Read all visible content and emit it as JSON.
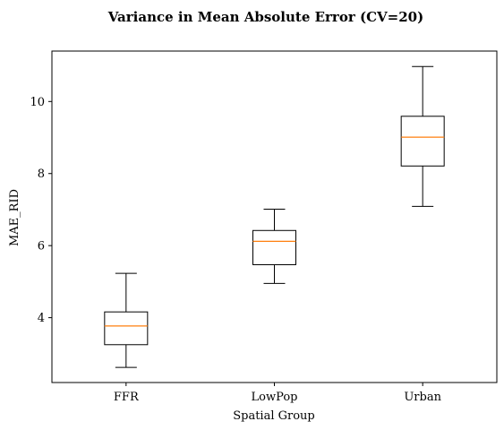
{
  "chart_data": {
    "type": "boxplot",
    "title": "Variance in Mean Absolute Error (CV=20)",
    "xlabel": "Spatial Group",
    "ylabel": "MAE_RID",
    "ylim": [
      2.2,
      11.4
    ],
    "yticks": [
      4,
      6,
      8,
      10
    ],
    "grid": false,
    "categories": [
      "FFR",
      "LowPop",
      "Urban"
    ],
    "boxes": [
      {
        "name": "FFR",
        "whisker_low": 2.62,
        "q1": 3.25,
        "median": 3.77,
        "q3": 4.16,
        "whisker_high": 5.23
      },
      {
        "name": "LowPop",
        "whisker_low": 4.95,
        "q1": 5.47,
        "median": 6.12,
        "q3": 6.42,
        "whisker_high": 7.01
      },
      {
        "name": "Urban",
        "whisker_low": 7.09,
        "q1": 8.21,
        "median": 9.01,
        "q3": 9.59,
        "whisker_high": 10.97
      }
    ],
    "colors": {
      "box": "#000000",
      "median": "#ff7f0e"
    }
  }
}
